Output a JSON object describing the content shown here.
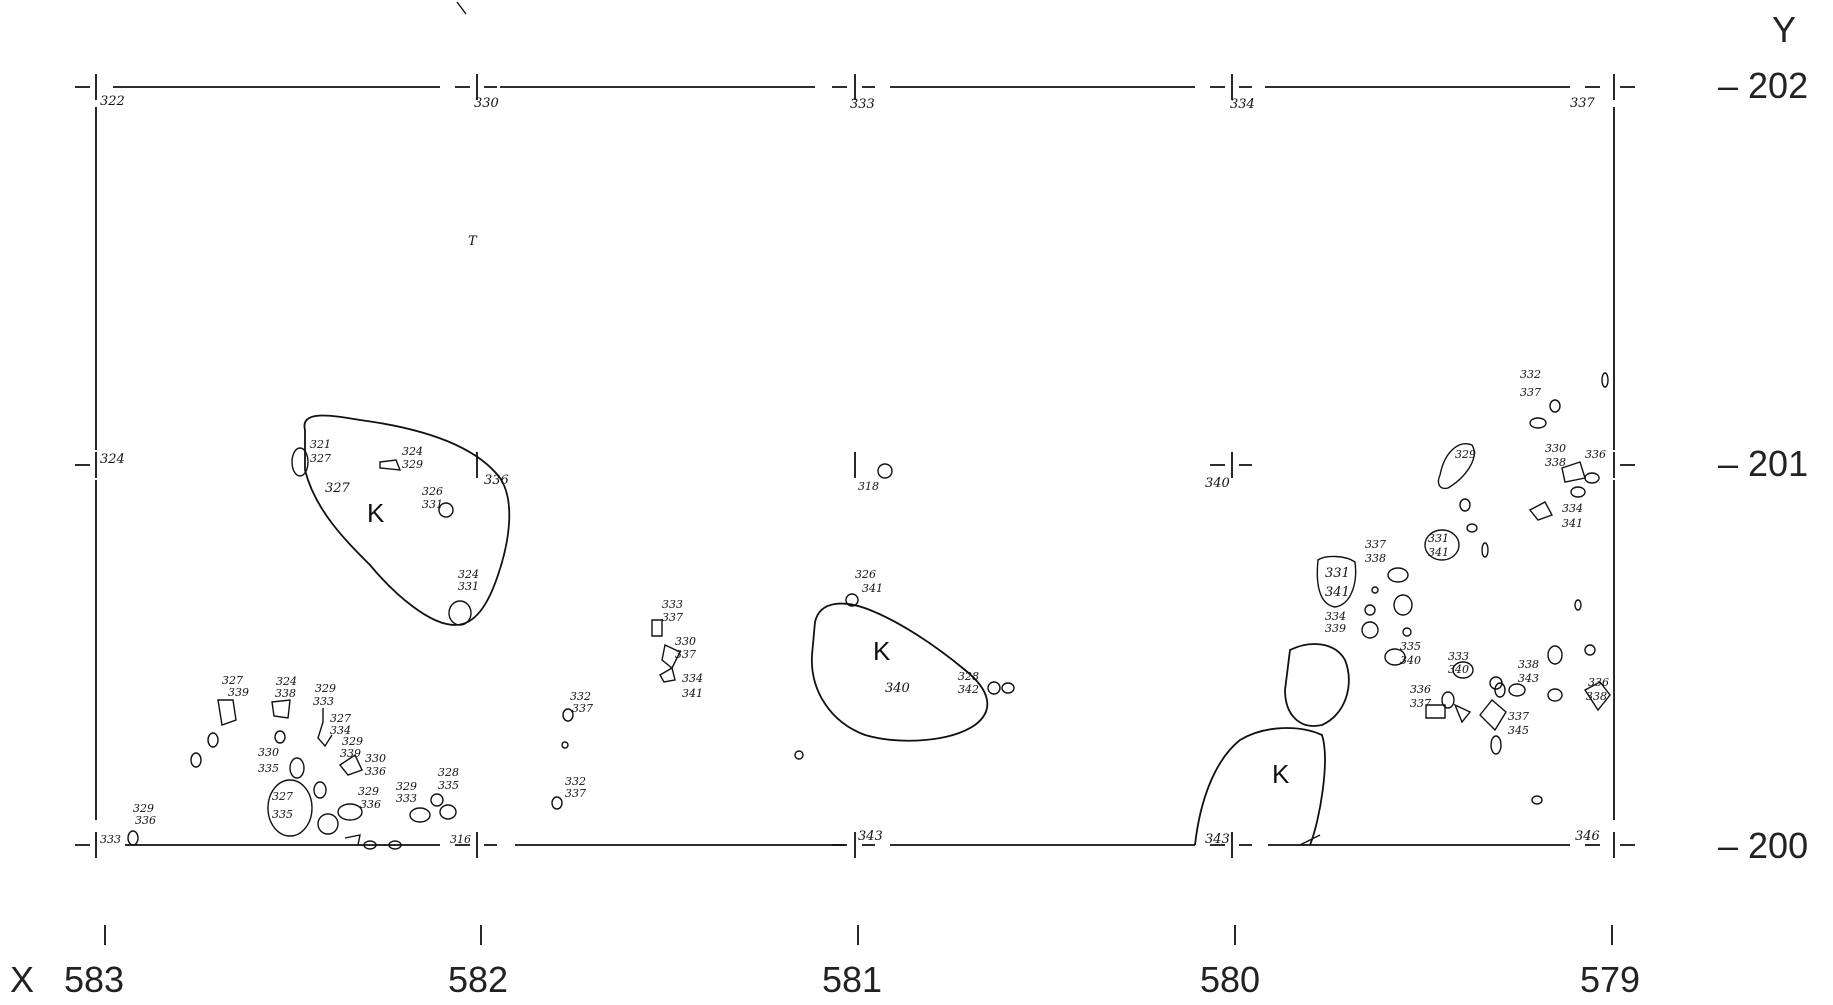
{
  "axes": {
    "x_letter": "X",
    "y_letter": "Y",
    "x_ticks": [
      "583",
      "582",
      "581",
      "580",
      "579"
    ],
    "y_ticks": [
      "– 202",
      "– 201",
      "– 200"
    ]
  },
  "corner_labels": {
    "top": [
      "322",
      "330",
      "333",
      "334",
      "337"
    ],
    "middle": [
      "324",
      "336",
      "318",
      "340"
    ],
    "bottom": [
      "333",
      "316",
      "343",
      "343",
      "346"
    ]
  },
  "feature_labels": {
    "k_mark": "K",
    "t_mark": "T",
    "pit_west_a": "321",
    "pit_west_b": "327",
    "pit_west_c": "327",
    "pit_west_d": "324",
    "pit_west_e": "329",
    "pit_west_f": "326",
    "pit_west_g": "331",
    "pit_west_h": "324",
    "pit_west_i": "331",
    "pit_centre_a": "326",
    "pit_centre_b": "341",
    "pit_centre_c": "340",
    "pit_centre_d": "328",
    "pit_centre_e": "342",
    "sw_a": "327",
    "sw_b": "339",
    "sw_c": "324",
    "sw_d": "338",
    "sw_e": "329",
    "sw_f": "333",
    "sw_g": "327",
    "sw_h": "334",
    "sw_i": "330",
    "sw_j": "335",
    "sw_k": "329",
    "sw_l": "339",
    "sw_m": "330",
    "sw_n": "336",
    "sw_o": "327",
    "sw_p": "335",
    "sw_q": "329",
    "sw_r": "336",
    "sw_s": "329",
    "sw_t": "333",
    "sw_u": "328",
    "sw_v": "335",
    "sw_w": "329",
    "sw_x": "336",
    "mid_a": "333",
    "mid_b": "337",
    "mid_c": "330",
    "mid_d": "337",
    "mid_e": "334",
    "mid_f": "341",
    "mid_g": "332",
    "mid_h": "337",
    "mid_i": "332",
    "mid_j": "337",
    "east_a": "332",
    "east_b": "337",
    "east_c": "329",
    "east_d": "330",
    "east_e": "338",
    "east_f": "336",
    "east_g": "334",
    "east_h": "341",
    "east_i": "337",
    "east_j": "338",
    "east_k": "331",
    "east_l": "341",
    "east_m": "331",
    "east_n": "341",
    "east_o": "334",
    "east_p": "339",
    "east_q": "335",
    "east_r": "340",
    "east_s": "333",
    "east_t": "340",
    "east_u": "336",
    "east_v": "337",
    "east_w": "338",
    "east_x": "343",
    "east_y": "337",
    "east_z": "345",
    "east_aa": "336",
    "east_ab": "338"
  }
}
